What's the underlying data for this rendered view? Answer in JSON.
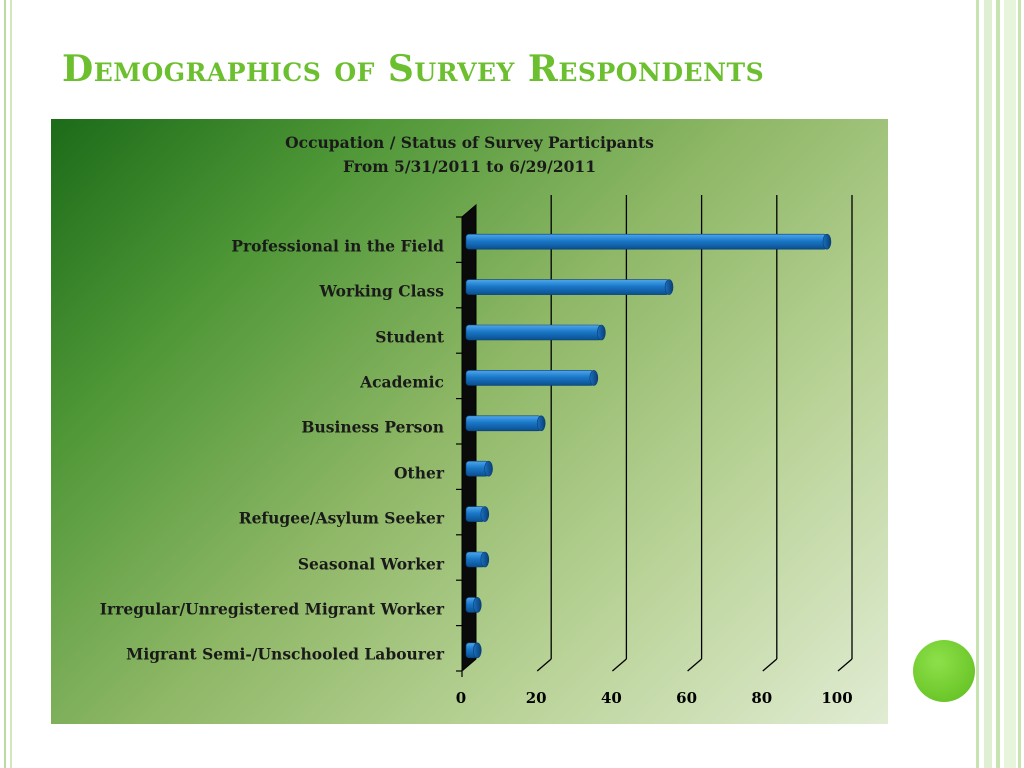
{
  "slide": {
    "title": "Demographics of Survey Respondents"
  },
  "colors": {
    "title": "#6cbf2e",
    "bar": "#1a78c8",
    "bar_dark": "#0b4f8f",
    "accent_dot": "#6cc72a"
  },
  "chart_data": {
    "type": "bar",
    "orientation": "horizontal",
    "title": "Occupation / Status of Survey Participants",
    "subtitle": "From 5/31/2011 to 6/29/2011",
    "categories": [
      "Professional in the Field",
      "Working Class",
      "Student",
      "Academic",
      "Business Person",
      "Other",
      "Refugee/Asylum Seeker",
      "Seasonal Worker",
      "Irregular/Unregistered Migrant Worker",
      "Migrant Semi-/Unschooled Labourer"
    ],
    "values": [
      96,
      54,
      36,
      34,
      20,
      6,
      5,
      5,
      3,
      3
    ],
    "xlim": [
      0,
      100
    ],
    "xticks": [
      "0",
      "20",
      "40",
      "60",
      "80",
      "100"
    ],
    "grid": true,
    "legend": "none"
  }
}
